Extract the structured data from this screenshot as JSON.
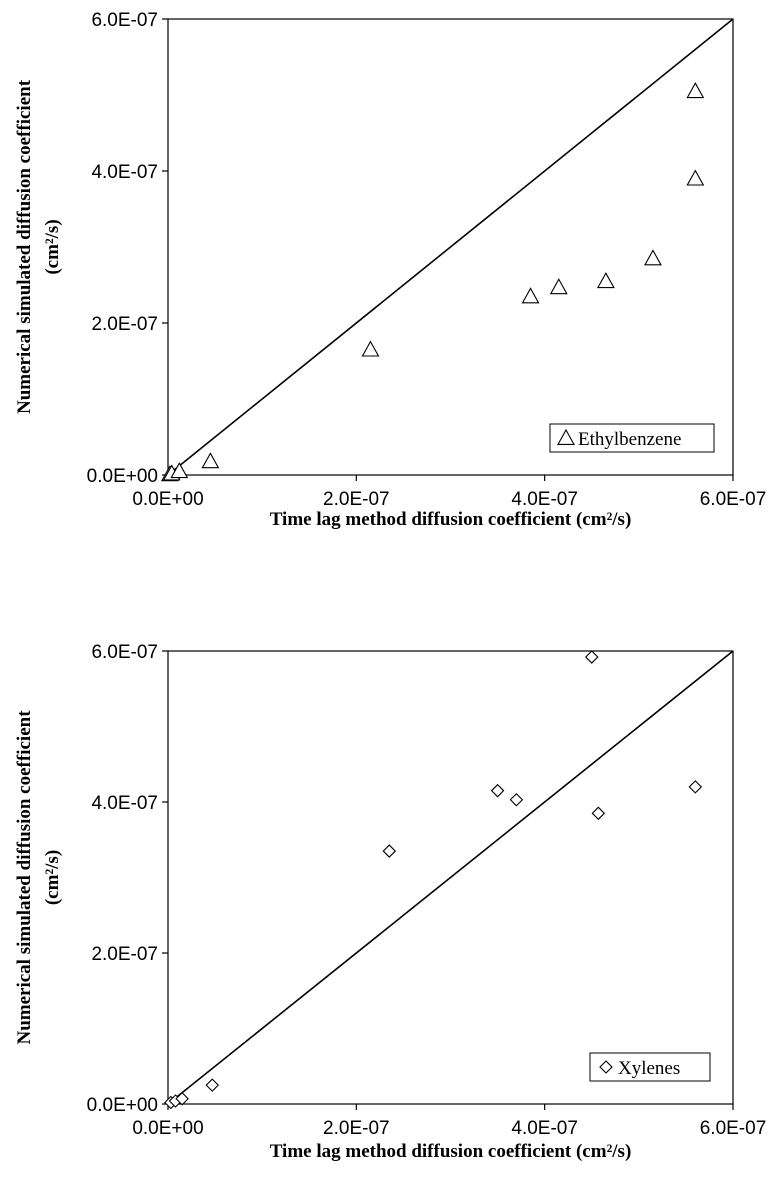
{
  "chart_data": [
    {
      "type": "scatter",
      "xlabel": "Time lag method diffusion coefficient (cm²/s)",
      "ylabel_line1": "Numerical simulated diffusion coefficient",
      "ylabel_line2": "(cm²/s)",
      "xlim": [
        0,
        6e-07
      ],
      "ylim": [
        0,
        6e-07
      ],
      "xticks": [
        "0.0E+00",
        "2.0E-07",
        "4.0E-07",
        "6.0E-07"
      ],
      "yticks": [
        "0.0E+00",
        "2.0E-07",
        "4.0E-07",
        "6.0E-07"
      ],
      "grid": false,
      "legend_position": "bottom-right",
      "reference_line": [
        [
          0,
          0
        ],
        [
          6e-07,
          6e-07
        ]
      ],
      "series": [
        {
          "name": "Ethylbenzene",
          "marker": "triangle",
          "points": [
            [
              2e-09,
              1e-09
            ],
            [
              4e-09,
              2e-09
            ],
            [
              1.2e-08,
              5e-09
            ],
            [
              4.5e-08,
              1.8e-08
            ],
            [
              2.15e-07,
              1.65e-07
            ],
            [
              3.85e-07,
              2.35e-07
            ],
            [
              4.15e-07,
              2.47e-07
            ],
            [
              4.65e-07,
              2.55e-07
            ],
            [
              5.15e-07,
              2.85e-07
            ],
            [
              5.6e-07,
              3.9e-07
            ],
            [
              5.6e-07,
              5.05e-07
            ]
          ]
        }
      ]
    },
    {
      "type": "scatter",
      "xlabel": "Time lag method diffusion coefficient (cm²/s)",
      "ylabel_line1": "Numerical simulated diffusion coefficient",
      "ylabel_line2": "(cm²/s)",
      "xlim": [
        0,
        6e-07
      ],
      "ylim": [
        0,
        6e-07
      ],
      "xticks": [
        "0.0E+00",
        "2.0E-07",
        "4.0E-07",
        "6.0E-07"
      ],
      "yticks": [
        "0.0E+00",
        "2.0E-07",
        "4.0E-07",
        "6.0E-07"
      ],
      "grid": false,
      "legend_position": "bottom-right",
      "reference_line": [
        [
          0,
          0
        ],
        [
          6e-07,
          6e-07
        ]
      ],
      "series": [
        {
          "name": "Xylenes",
          "marker": "diamond",
          "points": [
            [
              3e-09,
              2e-09
            ],
            [
              8e-09,
              4e-09
            ],
            [
              1.5e-08,
              7e-09
            ],
            [
              4.7e-08,
              2.5e-08
            ],
            [
              2.35e-07,
              3.35e-07
            ],
            [
              3.5e-07,
              4.15e-07
            ],
            [
              3.7e-07,
              4.03e-07
            ],
            [
              4.5e-07,
              5.92e-07
            ],
            [
              4.57e-07,
              3.85e-07
            ],
            [
              5.6e-07,
              4.2e-07
            ]
          ]
        }
      ]
    }
  ]
}
